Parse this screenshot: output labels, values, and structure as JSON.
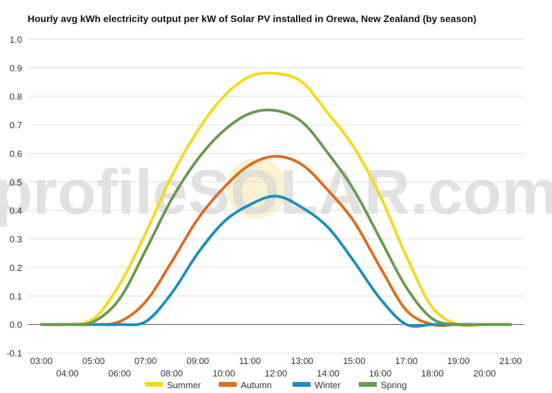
{
  "chart_data": {
    "type": "line",
    "title": "Hourly avg kWh electricity output per kW of Solar PV installed in Orewa, New Zealand (by season)",
    "xlabel": "",
    "ylabel": "",
    "x": [
      "03:00",
      "04:00",
      "05:00",
      "06:00",
      "07:00",
      "08:00",
      "09:00",
      "10:00",
      "11:00",
      "12:00",
      "13:00",
      "14:00",
      "15:00",
      "16:00",
      "17:00",
      "18:00",
      "19:00",
      "20:00",
      "21:00"
    ],
    "ylim": [
      -0.1,
      1.0
    ],
    "yticks": [
      "-0.1",
      "0.0",
      "0.1",
      "0.2",
      "0.3",
      "0.4",
      "0.5",
      "0.6",
      "0.7",
      "0.8",
      "0.9",
      "1.0"
    ],
    "grid": true,
    "legend_position": "bottom",
    "watermark": "profileSOLAR.com",
    "series": [
      {
        "name": "Summer",
        "color": "#f8d81a",
        "values": [
          0.0,
          0.0,
          0.02,
          0.14,
          0.32,
          0.52,
          0.68,
          0.8,
          0.87,
          0.88,
          0.85,
          0.74,
          0.62,
          0.45,
          0.24,
          0.06,
          0.0,
          0.0,
          0.0
        ]
      },
      {
        "name": "Autumn",
        "color": "#e06c1e",
        "values": [
          0.0,
          0.0,
          0.0,
          0.01,
          0.08,
          0.22,
          0.37,
          0.48,
          0.56,
          0.59,
          0.56,
          0.47,
          0.36,
          0.2,
          0.05,
          0.0,
          0.0,
          0.0,
          0.0
        ]
      },
      {
        "name": "Winter",
        "color": "#1a8fc1",
        "values": [
          0.0,
          0.0,
          0.0,
          0.0,
          0.01,
          0.11,
          0.25,
          0.36,
          0.42,
          0.45,
          0.41,
          0.34,
          0.22,
          0.09,
          0.0,
          0.0,
          0.0,
          0.0,
          0.0
        ]
      },
      {
        "name": "Spring",
        "color": "#6b9a50",
        "values": [
          0.0,
          0.0,
          0.01,
          0.09,
          0.26,
          0.44,
          0.58,
          0.68,
          0.74,
          0.75,
          0.71,
          0.6,
          0.47,
          0.3,
          0.13,
          0.02,
          0.0,
          0.0,
          0.0
        ]
      }
    ]
  }
}
